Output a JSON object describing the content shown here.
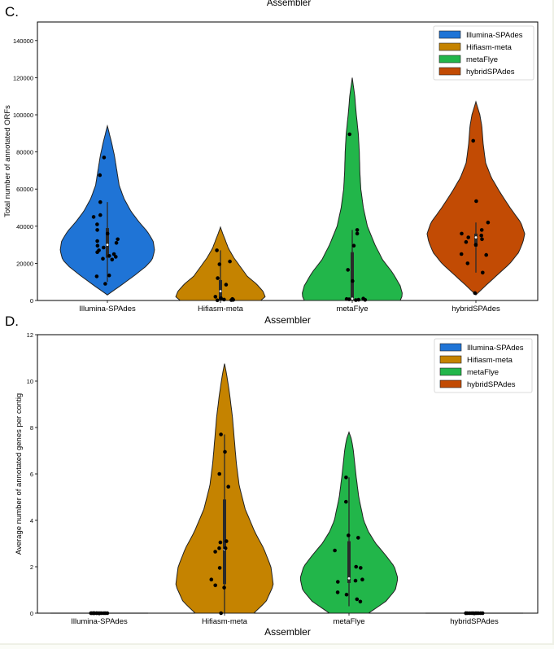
{
  "top_fragment_label": "Assembler",
  "colors": {
    "Illumina-SPAdes": "#1f74d6",
    "Hifiasm-meta": "#c58300",
    "metaFlye": "#22b64a",
    "hybridSPAdes": "#c24b04"
  },
  "chart_data": [
    {
      "panel_label": "C.",
      "type": "violin",
      "title": "",
      "xlabel": "Assembler",
      "ylabel": "Total number of annotated ORFs",
      "ylim": [
        0,
        150000
      ],
      "yticks": [
        0,
        20000,
        40000,
        60000,
        80000,
        100000,
        120000,
        140000
      ],
      "categories": [
        "Illumina-SPAdes",
        "Hifiasm-meta",
        "metaFlye",
        "hybridSPAdes"
      ],
      "legend": {
        "placement": "top-right",
        "entries": [
          "Illumina-SPAdes",
          "Hifiasm-meta",
          "metaFlye",
          "hybridSPAdes"
        ]
      },
      "series": [
        {
          "name": "Illumina-SPAdes",
          "violin": {
            "ymin": 3000,
            "ymax": 94000,
            "profile": [
              [
                3000,
                0
              ],
              [
                8000,
                0.28
              ],
              [
                13000,
                0.55
              ],
              [
                18000,
                0.8
              ],
              [
                22000,
                0.95
              ],
              [
                27000,
                1.0
              ],
              [
                32000,
                0.97
              ],
              [
                37000,
                0.85
              ],
              [
                42000,
                0.68
              ],
              [
                48000,
                0.5
              ],
              [
                55000,
                0.35
              ],
              [
                62000,
                0.25
              ],
              [
                70000,
                0.2
              ],
              [
                78000,
                0.15
              ],
              [
                86000,
                0.08
              ],
              [
                94000,
                0
              ]
            ]
          },
          "box": {
            "q1": 23000,
            "median": 30000,
            "q3": 39000,
            "whisker_low": 10000,
            "whisker_high": 53000
          },
          "points": [
            77000,
            67500,
            53000,
            46000,
            45000,
            41000,
            38000,
            36000,
            33000,
            32000,
            31000,
            29500,
            28500,
            27000,
            26000,
            25000,
            24000,
            23500,
            22500,
            22000,
            13500,
            13000,
            9000
          ]
        },
        {
          "name": "Hifiasm-meta",
          "violin": {
            "ymin": 0,
            "ymax": 39500,
            "profile": [
              [
                0,
                0.9
              ],
              [
                2000,
                1.0
              ],
              [
                5000,
                0.95
              ],
              [
                9000,
                0.8
              ],
              [
                13000,
                0.6
              ],
              [
                18000,
                0.45
              ],
              [
                23000,
                0.3
              ],
              [
                28000,
                0.18
              ],
              [
                33000,
                0.1
              ],
              [
                36000,
                0.05
              ],
              [
                39500,
                0
              ]
            ]
          },
          "box": {
            "q1": 0,
            "median": 5000,
            "q3": 11000,
            "whisker_low": 0,
            "whisker_high": 27000
          },
          "points": [
            27000,
            21000,
            19500,
            12000,
            8500,
            2000,
            1200,
            800,
            500,
            300,
            200,
            100
          ]
        },
        {
          "name": "metaFlye",
          "violin": {
            "ymin": 0,
            "ymax": 120000,
            "profile": [
              [
                0,
                0.95
              ],
              [
                3000,
                1.0
              ],
              [
                8000,
                0.95
              ],
              [
                15000,
                0.8
              ],
              [
                22000,
                0.6
              ],
              [
                30000,
                0.45
              ],
              [
                40000,
                0.3
              ],
              [
                50000,
                0.22
              ],
              [
                60000,
                0.17
              ],
              [
                70000,
                0.15
              ],
              [
                80000,
                0.14
              ],
              [
                90000,
                0.12
              ],
              [
                100000,
                0.08
              ],
              [
                110000,
                0.05
              ],
              [
                120000,
                0
              ]
            ]
          },
          "box": {
            "q1": 0,
            "median": 1000,
            "q3": 26000,
            "whisker_low": 0,
            "whisker_high": 38000
          },
          "points": [
            89500,
            38000,
            36000,
            29500,
            16500,
            10500,
            1000,
            800,
            600,
            400,
            300,
            200
          ]
        },
        {
          "name": "hybridSPAdes",
          "violin": {
            "ymin": 3000,
            "ymax": 107000,
            "profile": [
              [
                3000,
                0
              ],
              [
                8000,
                0.2
              ],
              [
                14000,
                0.45
              ],
              [
                20000,
                0.7
              ],
              [
                26000,
                0.88
              ],
              [
                32000,
                0.97
              ],
              [
                36000,
                1.0
              ],
              [
                42000,
                0.92
              ],
              [
                50000,
                0.7
              ],
              [
                58000,
                0.5
              ],
              [
                66000,
                0.32
              ],
              [
                74000,
                0.2
              ],
              [
                84000,
                0.15
              ],
              [
                94000,
                0.12
              ],
              [
                100000,
                0.08
              ],
              [
                107000,
                0
              ]
            ]
          },
          "box": {
            "q1": 29000,
            "median": 34000,
            "q3": 36000,
            "whisker_low": 15000,
            "whisker_high": 42000
          },
          "points": [
            86000,
            53500,
            42000,
            38000,
            36000,
            35000,
            34000,
            33000,
            31500,
            30000,
            25000,
            24500,
            20000,
            15000,
            4000
          ]
        }
      ]
    },
    {
      "panel_label": "D.",
      "type": "violin",
      "title": "",
      "xlabel": "Assembler",
      "ylabel": "Average number of annotated genes per contig",
      "ylim": [
        0,
        12
      ],
      "yticks": [
        0,
        2,
        4,
        6,
        8,
        10,
        12
      ],
      "categories": [
        "Illumina-SPAdes",
        "Hifiasm-meta",
        "metaFlye",
        "hybridSPAdes"
      ],
      "legend": {
        "placement": "top-right",
        "entries": [
          "Illumina-SPAdes",
          "Hifiasm-meta",
          "metaFlye",
          "hybridSPAdes"
        ]
      },
      "series": [
        {
          "name": "Illumina-SPAdes",
          "violin": {
            "ymin": 0,
            "ymax": 0.02,
            "profile": [
              [
                0,
                1.0
              ],
              [
                0.02,
                1.0
              ]
            ]
          },
          "box": null,
          "points": [
            0,
            0,
            0,
            0,
            0,
            0,
            0,
            0,
            0,
            0,
            0,
            0,
            0,
            0
          ]
        },
        {
          "name": "Hifiasm-meta",
          "violin": {
            "ymin": 0,
            "ymax": 10.75,
            "profile": [
              [
                0,
                0.6
              ],
              [
                0.5,
                0.85
              ],
              [
                1.2,
                1.0
              ],
              [
                2.0,
                0.95
              ],
              [
                2.8,
                0.8
              ],
              [
                3.5,
                0.62
              ],
              [
                4.5,
                0.42
              ],
              [
                5.5,
                0.3
              ],
              [
                6.5,
                0.24
              ],
              [
                7.5,
                0.2
              ],
              [
                8.5,
                0.16
              ],
              [
                9.5,
                0.1
              ],
              [
                10.2,
                0.05
              ],
              [
                10.75,
                0
              ]
            ]
          },
          "box": {
            "q1": 1.25,
            "median": 2.75,
            "q3": 4.9,
            "whisker_low": 0,
            "whisker_high": 7.7
          },
          "points": [
            7.7,
            6.95,
            6.0,
            5.45,
            3.05,
            3.1,
            2.8,
            2.8,
            2.65,
            1.95,
            1.45,
            1.2,
            1.1,
            0.0
          ]
        },
        {
          "name": "metaFlye",
          "violin": {
            "ymin": 0,
            "ymax": 7.8,
            "profile": [
              [
                0,
                0.4
              ],
              [
                0.5,
                0.75
              ],
              [
                1.0,
                0.95
              ],
              [
                1.5,
                1.0
              ],
              [
                2.0,
                0.93
              ],
              [
                2.5,
                0.75
              ],
              [
                3.0,
                0.55
              ],
              [
                3.5,
                0.4
              ],
              [
                4.0,
                0.3
              ],
              [
                5.0,
                0.2
              ],
              [
                6.0,
                0.14
              ],
              [
                7.0,
                0.09
              ],
              [
                7.5,
                0.05
              ],
              [
                7.8,
                0
              ]
            ]
          },
          "box": {
            "q1": 1.3,
            "median": 1.5,
            "q3": 3.1,
            "whisker_low": 0.3,
            "whisker_high": 5.85
          },
          "points": [
            5.85,
            4.8,
            3.35,
            3.25,
            2.7,
            2.0,
            1.95,
            1.4,
            1.45,
            1.35,
            0.9,
            0.8,
            0.6,
            0.5
          ]
        },
        {
          "name": "hybridSPAdes",
          "violin": {
            "ymin": 0,
            "ymax": 0.02,
            "profile": [
              [
                0,
                1.0
              ],
              [
                0.02,
                1.0
              ]
            ]
          },
          "box": null,
          "points": [
            0,
            0,
            0,
            0,
            0,
            0,
            0,
            0,
            0,
            0,
            0
          ]
        }
      ]
    }
  ]
}
